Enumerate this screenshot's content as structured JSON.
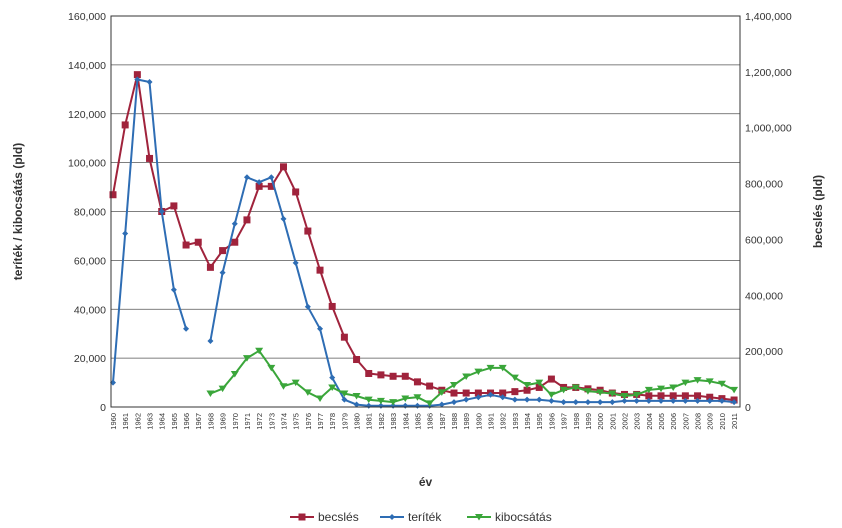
{
  "chart_data": {
    "type": "line",
    "title": "",
    "xlabel": "év",
    "ylabel_left": "teríték / kibocsátás (pld)",
    "ylabel_right": "becslés (pld)",
    "ylim_left": [
      0,
      160000
    ],
    "ylim_right": [
      0,
      1400000
    ],
    "yticks_left": [
      "0",
      "20,000",
      "40,000",
      "60,000",
      "80,000",
      "100,000",
      "120,000",
      "140,000",
      "160,000"
    ],
    "yticks_right": [
      "0",
      "200,000",
      "400,000",
      "600,000",
      "800,000",
      "1,000,000",
      "1,200,000",
      "1,400,000"
    ],
    "grid": true,
    "legend_position": "bottom",
    "x": [
      1960,
      1961,
      1962,
      1963,
      1964,
      1965,
      1966,
      1967,
      1968,
      1969,
      1970,
      1971,
      1972,
      1973,
      1974,
      1975,
      1976,
      1977,
      1978,
      1979,
      1980,
      1981,
      1982,
      1983,
      1984,
      1985,
      1986,
      1987,
      1988,
      1989,
      1990,
      1991,
      1992,
      1993,
      1994,
      1995,
      1996,
      1997,
      1998,
      1999,
      2000,
      2001,
      2002,
      2003,
      2004,
      2005,
      2006,
      2007,
      2008,
      2009,
      2010,
      2011
    ],
    "series": [
      {
        "name": "becslés",
        "axis": "right",
        "color": "#a0233c",
        "marker": "square",
        "values": [
          760000,
          1010000,
          1190000,
          890000,
          700000,
          720000,
          580000,
          590000,
          500000,
          560000,
          590000,
          670000,
          790000,
          790000,
          860000,
          770000,
          630000,
          490000,
          360000,
          250000,
          170000,
          120000,
          115000,
          110000,
          110000,
          90000,
          75000,
          60000,
          50000,
          50000,
          50000,
          50000,
          50000,
          55000,
          60000,
          70000,
          100000,
          70000,
          70000,
          65000,
          60000,
          50000,
          45000,
          45000,
          40000,
          40000,
          40000,
          40000,
          40000,
          35000,
          30000,
          25000
        ]
      },
      {
        "name": "teríték",
        "axis": "left",
        "color": "#2e6db4",
        "marker": "diamond",
        "values": [
          10000,
          71000,
          134000,
          133000,
          80000,
          48000,
          32000,
          null,
          27000,
          55000,
          75000,
          94000,
          92000,
          94000,
          77000,
          59000,
          41000,
          32000,
          12000,
          3000,
          1000,
          500,
          500,
          500,
          500,
          500,
          500,
          1000,
          2000,
          3000,
          4000,
          5000,
          4000,
          3000,
          3000,
          3000,
          2500,
          2000,
          2000,
          2000,
          2000,
          2000,
          2500,
          2500,
          2500,
          2500,
          2500,
          2500,
          2500,
          2500,
          2500,
          2000
        ]
      },
      {
        "name": "kibocsátás",
        "axis": "left",
        "color": "#3aa63a",
        "marker": "triangle-down",
        "values": [
          null,
          null,
          null,
          null,
          null,
          null,
          null,
          null,
          5500,
          7500,
          13500,
          20000,
          23000,
          16000,
          8500,
          10000,
          6000,
          3500,
          8000,
          5500,
          4500,
          3000,
          2500,
          2000,
          3500,
          4000,
          1500,
          6000,
          9000,
          12500,
          14500,
          16000,
          16000,
          12000,
          9000,
          10000,
          5000,
          7000,
          8000,
          6500,
          6000,
          5500,
          4500,
          5000,
          7000,
          7500,
          8000,
          10000,
          11000,
          10500,
          9500,
          7000
        ]
      }
    ]
  }
}
